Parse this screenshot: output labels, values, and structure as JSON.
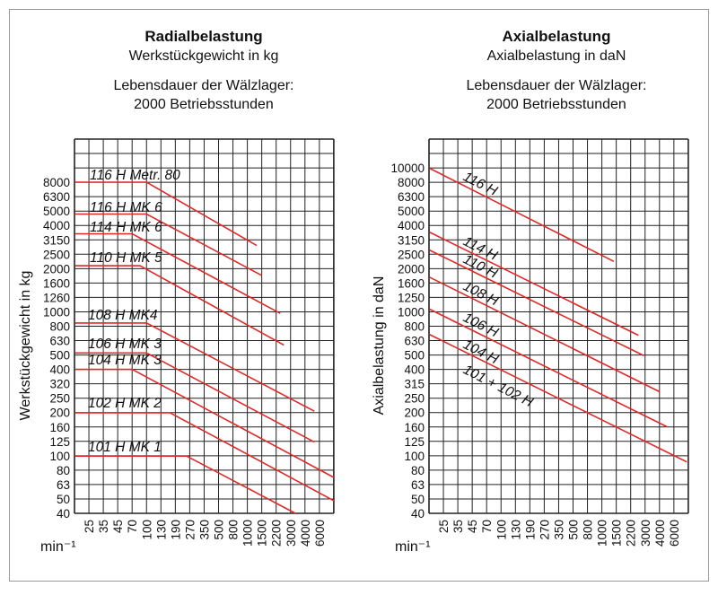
{
  "chart_data": [
    {
      "type": "line",
      "title": "Radialbelastung",
      "subtitle": "Werkstückgewicht in kg",
      "note_line1": "Lebensdauer der Wälzlager:",
      "note_line2": "2000 Betriebsstunden",
      "ylabel": "Werkstückgewicht in kg",
      "xlabel": "min⁻¹",
      "x_ticks": [
        25,
        35,
        45,
        70,
        100,
        130,
        190,
        270,
        350,
        500,
        800,
        1000,
        1500,
        2200,
        3000,
        4000,
        6000
      ],
      "y_ticks": [
        40,
        50,
        63,
        80,
        100,
        125,
        160,
        200,
        250,
        320,
        400,
        500,
        630,
        800,
        1000,
        1260,
        1600,
        2000,
        2500,
        3150,
        4000,
        5000,
        6300,
        8000
      ],
      "y_scale": "log",
      "grid": true,
      "line_color": "#e02a2a",
      "series": [
        {
          "name": "116 H Metr. 80",
          "points": [
            [
              18,
              8000
            ],
            [
              100,
              8000
            ],
            [
              1300,
              2900
            ]
          ]
        },
        {
          "name": "116 H MK 6",
          "points": [
            [
              18,
              4800
            ],
            [
              100,
              4800
            ],
            [
              1500,
              1800
            ]
          ]
        },
        {
          "name": "114 H MK 6",
          "points": [
            [
              18,
              3500
            ],
            [
              70,
              3500
            ],
            [
              2400,
              980
            ]
          ]
        },
        {
          "name": "110 H MK 5",
          "points": [
            [
              18,
              2100
            ],
            [
              85,
              2100
            ],
            [
              2600,
              590
            ]
          ]
        },
        {
          "name": "108 H MK4",
          "points": [
            [
              18,
              840
            ],
            [
              100,
              840
            ],
            [
              5200,
              205
            ]
          ]
        },
        {
          "name": "106 H MK 3",
          "points": [
            [
              18,
              520
            ],
            [
              100,
              520
            ],
            [
              5200,
              125
            ]
          ]
        },
        {
          "name": "104 H MK 3",
          "points": [
            [
              18,
              400
            ],
            [
              70,
              400
            ],
            [
              9000,
              71
            ]
          ]
        },
        {
          "name": "102 H MK 2",
          "points": [
            [
              18,
              200
            ],
            [
              165,
              200
            ],
            [
              9000,
              49
            ]
          ]
        },
        {
          "name": "101 H MK 1",
          "points": [
            [
              18,
              100
            ],
            [
              250,
              100
            ],
            [
              3300,
              40
            ]
          ]
        }
      ]
    },
    {
      "type": "line",
      "title": "Axialbelastung",
      "subtitle": "Axialbelastung in daN",
      "note_line1": "Lebensdauer der Wälzlager:",
      "note_line2": "2000 Betriebsstunden",
      "ylabel": "Axialbelastung in daN",
      "xlabel": "min⁻¹",
      "x_ticks": [
        25,
        35,
        45,
        70,
        100,
        130,
        190,
        270,
        350,
        500,
        800,
        1000,
        1500,
        2200,
        3000,
        4000,
        6000
      ],
      "y_ticks": [
        40,
        50,
        63,
        80,
        100,
        125,
        160,
        200,
        250,
        315,
        400,
        500,
        630,
        800,
        1000,
        1250,
        1600,
        2000,
        2500,
        3150,
        4000,
        5000,
        6300,
        8000,
        10000
      ],
      "y_scale": "log",
      "grid": true,
      "line_color": "#e02a2a",
      "series": [
        {
          "name": "116 H",
          "points": [
            [
              18,
              10000
            ],
            [
              1400,
              2250
            ]
          ]
        },
        {
          "name": "114 H",
          "points": [
            [
              18,
              3600
            ],
            [
              2600,
              690
            ]
          ]
        },
        {
          "name": "110 H",
          "points": [
            [
              18,
              2700
            ],
            [
              2900,
              500
            ]
          ]
        },
        {
          "name": "108 H",
          "points": [
            [
              18,
              1750
            ],
            [
              4000,
              280
            ]
          ]
        },
        {
          "name": "106 H",
          "points": [
            [
              18,
              1050
            ],
            [
              4900,
              160
            ]
          ]
        },
        {
          "name": "104 H",
          "points": [
            [
              18,
              700
            ],
            [
              8600,
              91
            ]
          ]
        }
      ],
      "annotations": [
        "101 + 102 H"
      ]
    }
  ]
}
